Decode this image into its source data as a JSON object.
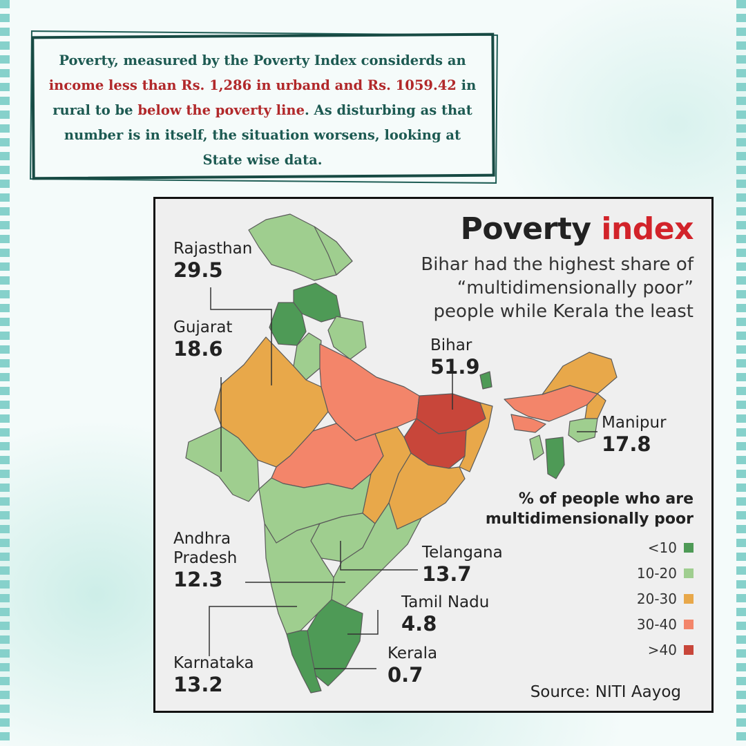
{
  "note": {
    "line1": "Poverty, measured by the Poverty Index considerds an",
    "line2_red": "income less than Rs. 1,286 in urband and Rs. 1059.42",
    "line2_tail": " in",
    "line3_head": "rural  to be  ",
    "line3_red": "below the poverty line",
    "line3_tail": ". As disturbing as that",
    "line4": "number is in itself, the situation worsens, looking at",
    "line5": "State wise data."
  },
  "map": {
    "title_part1": "Poverty ",
    "title_part2": "index",
    "subtitle": "Bihar had the highest share of “multidimensionally poor” people while Kerala the least",
    "source": "Source: NITI Aayog",
    "colors": {
      "lt10": "#4e9a56",
      "10_20": "#9fce8f",
      "20_30": "#e8a84a",
      "30_40": "#f3856a",
      "gt40": "#c8463a",
      "boundary": "#555555"
    },
    "labels": {
      "rajasthan": {
        "name": "Rajasthan",
        "value": "29.5"
      },
      "gujarat": {
        "name": "Gujarat",
        "value": "18.6"
      },
      "bihar": {
        "name": "Bihar",
        "value": "51.9"
      },
      "manipur": {
        "name": "Manipur",
        "value": "17.8"
      },
      "andhra": {
        "name": "Andhra Pradesh",
        "name_l1": "Andhra",
        "name_l2": "Pradesh",
        "value": "12.3"
      },
      "telangana": {
        "name": "Telangana",
        "value": "13.7"
      },
      "tamil_nadu": {
        "name": "Tamil Nadu",
        "value": "4.8"
      },
      "kerala": {
        "name": "Kerala",
        "value": "0.7"
      },
      "karnataka": {
        "name": "Karnataka",
        "value": "13.2"
      }
    },
    "legend": {
      "title": "% of people who are multidimensionally poor",
      "items": [
        {
          "label": "<10",
          "color": "#4e9a56"
        },
        {
          "label": "10-20",
          "color": "#9fce8f"
        },
        {
          "label": "20-30",
          "color": "#e8a84a"
        },
        {
          "label": "30-40",
          "color": "#f3856a"
        },
        {
          "label": ">40",
          "color": "#c8463a"
        }
      ]
    }
  }
}
